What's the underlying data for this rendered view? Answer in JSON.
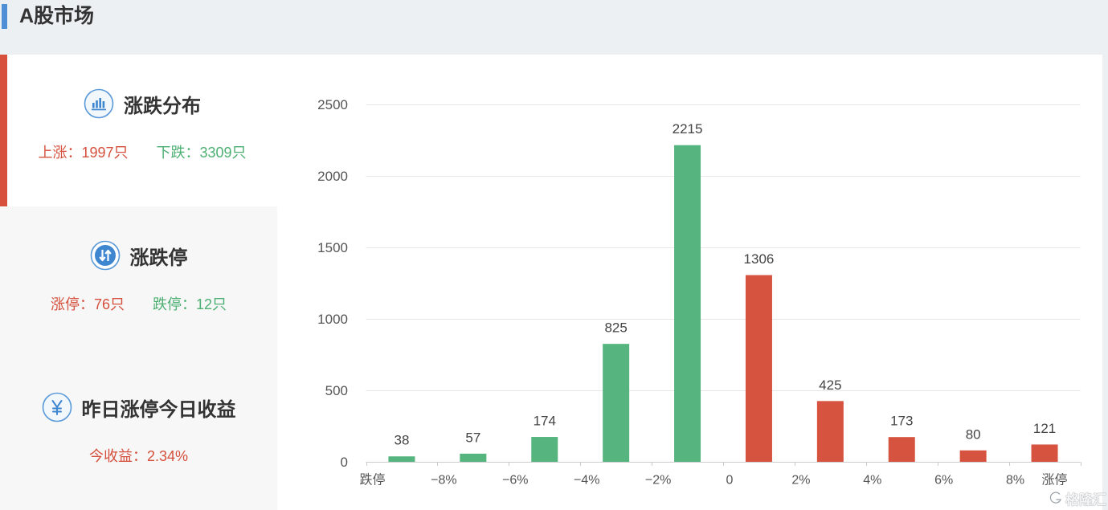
{
  "header": {
    "title": "A股市场",
    "accent_color": "#4f8fd6"
  },
  "colors": {
    "up": "#d6533f",
    "down": "#56b57f",
    "active_border": "#d6503b",
    "icon_blue": "#3f86d0"
  },
  "sidebar": {
    "active_index": 0,
    "items": [
      {
        "title": "涨跌分布",
        "icon": "bar-chart-icon",
        "stats": [
          {
            "label": "上涨：",
            "value": "1997只",
            "color": "#d5503c"
          },
          {
            "label": "下跌：",
            "value": "3309只",
            "color": "#4caf72"
          }
        ]
      },
      {
        "title": "涨跌停",
        "icon": "up-down-arrows-icon",
        "stats": [
          {
            "label": "涨停：",
            "value": "76只",
            "color": "#d5503c"
          },
          {
            "label": "跌停：",
            "value": "12只",
            "color": "#4caf72"
          }
        ]
      },
      {
        "title": "昨日涨停今日收益",
        "icon": "yen-icon",
        "stats": [
          {
            "label": "今收益：",
            "value": "2.34%",
            "color": "#d5503c"
          }
        ]
      }
    ]
  },
  "chart_data": {
    "type": "bar",
    "title": "",
    "xlabel": "",
    "ylabel": "",
    "x_tick_labels": [
      "跌停",
      "−8%",
      "−6%",
      "−4%",
      "−2%",
      "0",
      "2%",
      "4%",
      "6%",
      "8%",
      "涨停"
    ],
    "values": [
      38,
      57,
      174,
      825,
      2215,
      1306,
      425,
      173,
      80,
      121
    ],
    "bar_colors": [
      "#56b57f",
      "#56b57f",
      "#56b57f",
      "#56b57f",
      "#56b57f",
      "#d6533f",
      "#d6533f",
      "#d6533f",
      "#d6533f",
      "#d6533f"
    ],
    "ylim": [
      0,
      2500
    ],
    "yticks": [
      0,
      500,
      1000,
      1500,
      2000,
      2500
    ],
    "grid": true,
    "data_labels": true
  },
  "watermark": {
    "text": "格隆汇"
  }
}
